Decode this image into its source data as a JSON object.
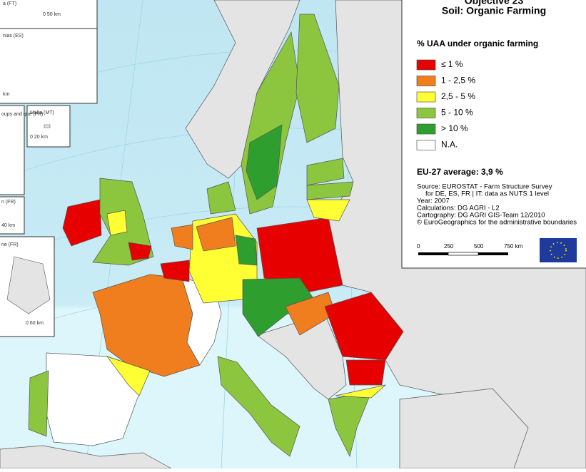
{
  "title": {
    "line1": "Objective 23",
    "line2": "Soil: Organic Farming"
  },
  "legend": {
    "heading": "% UAA under organic farming",
    "items": [
      {
        "label": "≤ 1 %",
        "color": "#e60000"
      },
      {
        "label": "1 - 2,5 %",
        "color": "#f07d1e"
      },
      {
        "label": "2,5 - 5 %",
        "color": "#ffff33"
      },
      {
        "label": "5 - 10 %",
        "color": "#8cc63f"
      },
      {
        "label": "> 10 %",
        "color": "#2e9e2e"
      },
      {
        "label": "N.A.",
        "color": "#ffffff"
      }
    ]
  },
  "average": "EU-27 average:  3,9 %",
  "source": [
    "Source: EUROSTAT - Farm Structure Survey",
    "for DE, ES, FR | IT: data as NUTS 1 level",
    "Year: 2007",
    "Calculations: DG AGRI - L2",
    "Cartography: DG AGRI GIS-Team 12/2010",
    "© EuroGeographics for the administrative boundaries"
  ],
  "scale": [
    "0",
    "250",
    "500",
    "750 km"
  ],
  "insets": [
    "a (FT)",
    "0 50 km",
    "nias (ES)",
    "km",
    "oups and que (FR)",
    "Malta (MT)",
    "0  20 km",
    "n (FR)",
    "40 km",
    "ne (FR)",
    "0  60 km"
  ]
}
